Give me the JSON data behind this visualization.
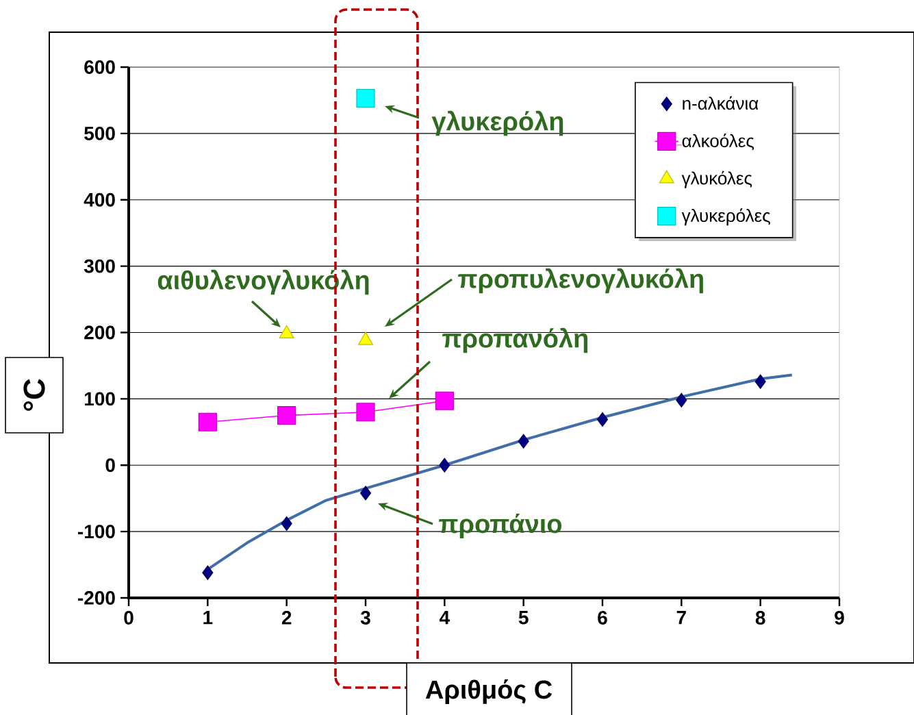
{
  "chart_data": {
    "type": "scatter",
    "xlabel": "Αριθμός C",
    "ylabel": "°C",
    "xlim": [
      0,
      9
    ],
    "ylim": [
      -200,
      600
    ],
    "xticks": [
      0,
      1,
      2,
      3,
      4,
      5,
      6,
      7,
      8,
      9
    ],
    "yticks": [
      -200,
      -100,
      0,
      100,
      200,
      300,
      400,
      500,
      600
    ],
    "grid": "y",
    "legend": "top right",
    "series": [
      {
        "name": "n-αλκάνια",
        "marker": "diamond",
        "color": "#000080",
        "x": [
          1,
          2,
          3,
          4,
          5,
          6,
          7,
          8
        ],
        "values": [
          -162,
          -88,
          -42,
          0,
          36,
          69,
          98,
          126
        ]
      },
      {
        "name": "αλκοόλες",
        "type": "line",
        "marker": "square",
        "color": "#ff00ff",
        "x": [
          1,
          2,
          3,
          4
        ],
        "values": [
          65,
          75,
          80,
          97
        ]
      },
      {
        "name": "γλυκόλες",
        "marker": "triangle",
        "color": "#ffff00",
        "x": [
          2,
          3
        ],
        "values": [
          198,
          188
        ]
      },
      {
        "name": "γλυκερόλες",
        "marker": "square",
        "color": "#00ffff",
        "x": [
          3
        ],
        "values": [
          553
        ]
      },
      {
        "type": "line",
        "marker": "none",
        "color": "#3f6ea8",
        "x": [
          1,
          1.5,
          2,
          2.5,
          3,
          4,
          5,
          6,
          7,
          8,
          8.4
        ],
        "values": [
          -157,
          -117,
          -83,
          -53,
          -35,
          0,
          38,
          72,
          103,
          130,
          136
        ]
      }
    ],
    "annotations": [
      "γλυκερόλη",
      "αιθυλενογλυκόλη",
      "προπυλενογλυκόλη",
      "προπανόλη",
      "προπάνιο"
    ]
  }
}
